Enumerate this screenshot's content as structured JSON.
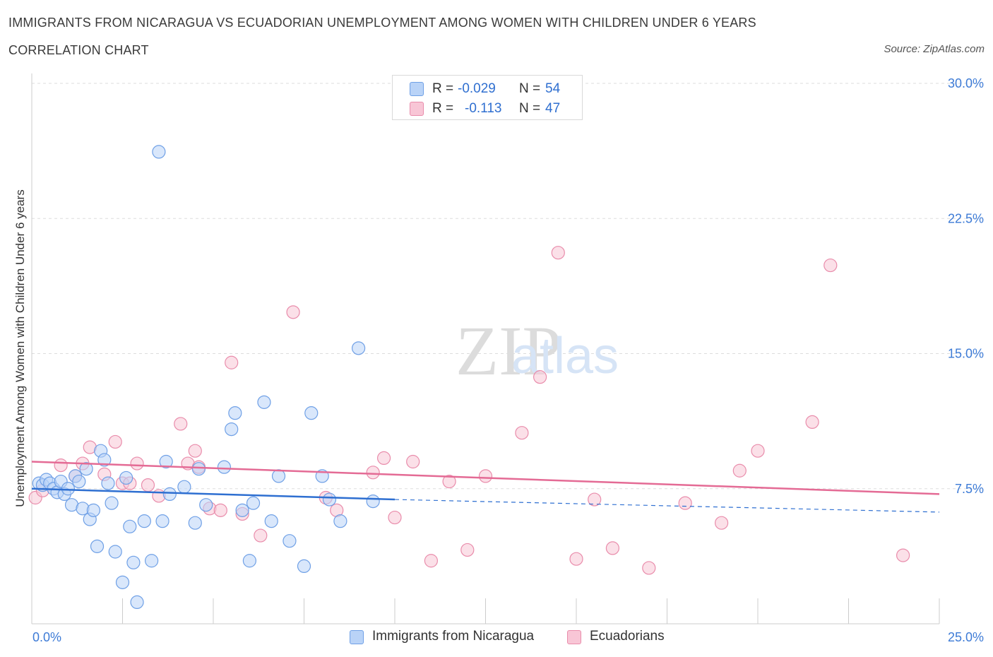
{
  "title": "IMMIGRANTS FROM NICARAGUA VS ECUADORIAN UNEMPLOYMENT AMONG WOMEN WITH CHILDREN UNDER 6 YEARS",
  "subtitle": "CORRELATION CHART",
  "source": "Source: ZipAtlas.com",
  "watermark": {
    "zip": "ZIP",
    "atlas": "atlas"
  },
  "colors": {
    "blue_fill": "#b9d3f7",
    "blue_stroke": "#6fa0e6",
    "blue_line": "#2e6fd1",
    "pink_fill": "#f8c6d6",
    "pink_stroke": "#e98cab",
    "pink_line": "#e46b95",
    "tick_text": "#3d7bd6"
  },
  "legend": {
    "rows": [
      {
        "r_label": "R =",
        "r_value": "-0.029",
        "n_label": "N =",
        "n_value": "54",
        "color": "blue"
      },
      {
        "r_label": "R =",
        "r_value": "-0.113",
        "n_label": "N =",
        "n_value": "47",
        "color": "pink"
      }
    ]
  },
  "series_labels": {
    "blue": "Immigrants from Nicaragua",
    "pink": "Ecuadorians"
  },
  "chart_data": {
    "type": "scatter",
    "title": "IMMIGRANTS FROM NICARAGUA VS ECUADORIAN UNEMPLOYMENT AMONG WOMEN WITH CHILDREN UNDER 6 YEARS",
    "xlabel": "",
    "ylabel": "Unemployment Among Women with Children Under 6 years",
    "xlim": [
      0,
      25
    ],
    "ylim": [
      0,
      30
    ],
    "x_tick_labels": [
      "0.0%",
      "25.0%"
    ],
    "y_ticks": [
      7.5,
      15.0,
      22.5,
      30.0
    ],
    "y_tick_labels": [
      "7.5%",
      "15.0%",
      "22.5%",
      "30.0%"
    ],
    "grid": true,
    "series": [
      {
        "name": "Immigrants from Nicaragua",
        "color": "blue",
        "R": -0.029,
        "N": 54,
        "trend": {
          "x0": 0,
          "y0": 7.5,
          "x1": 10,
          "y1": 6.9,
          "dash_to_x": 25,
          "dash_to_y": 6.2
        },
        "points": [
          [
            0.2,
            7.8
          ],
          [
            0.3,
            7.7
          ],
          [
            0.4,
            8.0
          ],
          [
            0.5,
            7.8
          ],
          [
            0.6,
            7.5
          ],
          [
            0.7,
            7.3
          ],
          [
            0.8,
            7.9
          ],
          [
            0.9,
            7.2
          ],
          [
            1.0,
            7.5
          ],
          [
            1.1,
            6.6
          ],
          [
            1.2,
            8.2
          ],
          [
            1.3,
            7.9
          ],
          [
            1.4,
            6.4
          ],
          [
            1.5,
            8.6
          ],
          [
            1.6,
            5.8
          ],
          [
            1.7,
            6.3
          ],
          [
            1.8,
            4.3
          ],
          [
            1.9,
            9.6
          ],
          [
            2.0,
            9.1
          ],
          [
            2.1,
            7.8
          ],
          [
            2.2,
            6.7
          ],
          [
            2.3,
            4.0
          ],
          [
            2.5,
            2.3
          ],
          [
            2.6,
            8.1
          ],
          [
            2.7,
            5.4
          ],
          [
            2.8,
            3.4
          ],
          [
            2.9,
            1.2
          ],
          [
            3.1,
            5.7
          ],
          [
            3.3,
            3.5
          ],
          [
            3.5,
            26.2
          ],
          [
            3.6,
            5.7
          ],
          [
            3.7,
            9.0
          ],
          [
            3.8,
            7.2
          ],
          [
            4.2,
            7.6
          ],
          [
            4.5,
            5.6
          ],
          [
            4.6,
            8.6
          ],
          [
            4.8,
            6.6
          ],
          [
            5.3,
            8.7
          ],
          [
            5.5,
            10.8
          ],
          [
            5.6,
            11.7
          ],
          [
            5.8,
            6.3
          ],
          [
            6.0,
            3.5
          ],
          [
            6.1,
            6.7
          ],
          [
            6.4,
            12.3
          ],
          [
            6.6,
            5.7
          ],
          [
            6.8,
            8.2
          ],
          [
            7.1,
            4.6
          ],
          [
            7.5,
            3.2
          ],
          [
            7.7,
            11.7
          ],
          [
            8.0,
            8.2
          ],
          [
            8.2,
            6.9
          ],
          [
            8.5,
            5.7
          ],
          [
            9.0,
            15.3
          ],
          [
            9.4,
            6.8
          ]
        ]
      },
      {
        "name": "Ecuadorians",
        "color": "pink",
        "R": -0.113,
        "N": 47,
        "trend": {
          "x0": 0,
          "y0": 9.0,
          "x1": 25,
          "y1": 7.2
        },
        "points": [
          [
            0.1,
            7.0
          ],
          [
            0.3,
            7.4
          ],
          [
            0.8,
            8.8
          ],
          [
            1.2,
            8.2
          ],
          [
            1.4,
            8.9
          ],
          [
            1.6,
            9.8
          ],
          [
            2.0,
            8.3
          ],
          [
            2.3,
            10.1
          ],
          [
            2.5,
            7.8
          ],
          [
            2.7,
            7.8
          ],
          [
            2.9,
            8.9
          ],
          [
            3.2,
            7.7
          ],
          [
            3.5,
            7.1
          ],
          [
            4.1,
            11.1
          ],
          [
            4.3,
            8.9
          ],
          [
            4.5,
            9.6
          ],
          [
            4.6,
            8.7
          ],
          [
            4.9,
            6.4
          ],
          [
            5.2,
            6.3
          ],
          [
            5.5,
            14.5
          ],
          [
            5.8,
            6.1
          ],
          [
            6.3,
            4.9
          ],
          [
            7.2,
            17.3
          ],
          [
            8.1,
            7.0
          ],
          [
            8.4,
            6.3
          ],
          [
            9.4,
            8.4
          ],
          [
            9.7,
            9.2
          ],
          [
            10.0,
            5.9
          ],
          [
            10.5,
            9.0
          ],
          [
            11.0,
            3.5
          ],
          [
            11.5,
            7.9
          ],
          [
            12.0,
            4.1
          ],
          [
            12.5,
            8.2
          ],
          [
            13.5,
            10.6
          ],
          [
            14.0,
            13.7
          ],
          [
            14.5,
            20.6
          ],
          [
            15.0,
            3.6
          ],
          [
            15.5,
            6.9
          ],
          [
            16.0,
            4.2
          ],
          [
            17.0,
            3.1
          ],
          [
            18.0,
            6.7
          ],
          [
            19.0,
            5.6
          ],
          [
            19.5,
            8.5
          ],
          [
            20.0,
            9.6
          ],
          [
            21.5,
            11.2
          ],
          [
            22.0,
            19.9
          ],
          [
            24.0,
            3.8
          ]
        ]
      }
    ]
  }
}
